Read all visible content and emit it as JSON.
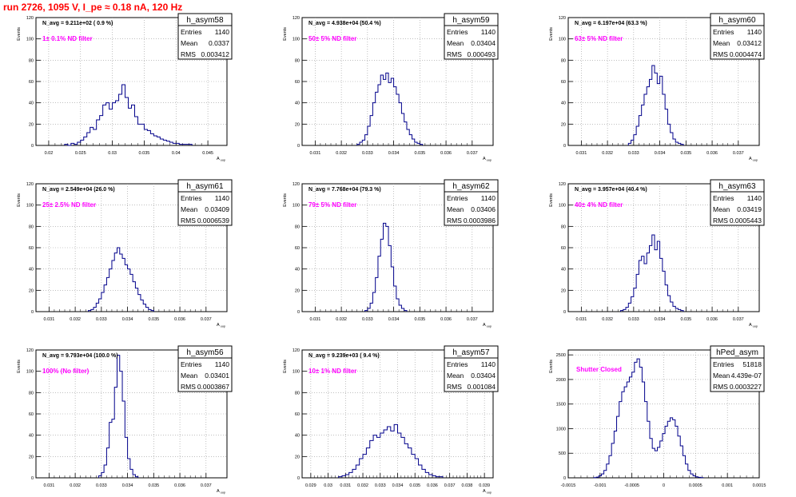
{
  "run_title": "run 2726,  1095 V, I_pe ≈ 0.18 nA, 120 Hz",
  "colors": {
    "histogram": "#00008b",
    "annotation": "#ff00ff",
    "title_red": "#ff0000",
    "grid": "#999999"
  },
  "chart_data": [
    {
      "type": "histogram",
      "name": "h_asym58",
      "ylabel": "Events",
      "xlabel": "A_uup",
      "xlim": [
        0.018,
        0.048
      ],
      "ylim": [
        0,
        120
      ],
      "xticks": [
        0.02,
        0.025,
        0.03,
        0.035,
        0.04,
        0.045
      ],
      "xtick_labels": [
        "0.02",
        "0.025",
        "0.03",
        "0.035",
        "0.04",
        "0.045"
      ],
      "yticks": [
        0,
        20,
        40,
        60,
        80,
        100,
        120
      ],
      "stats": {
        "entries_label": "Entries",
        "entries": "1140",
        "mean_label": "Mean",
        "mean": "0.0337",
        "rms_label": "RMS",
        "rms": "0.003412"
      },
      "navg_text": "N_avg = 9.211e+02 ( 0.9 %)",
      "filter_text": "1± 0.1% ND filter",
      "bins": {
        "x0": 0.0225,
        "width": 0.0005,
        "counts": [
          1,
          0,
          2,
          1,
          3,
          5,
          8,
          12,
          17,
          15,
          24,
          28,
          38,
          40,
          34,
          40,
          42,
          48,
          57,
          45,
          35,
          38,
          27,
          20,
          20,
          15,
          14,
          11,
          9,
          8,
          6,
          5,
          4,
          3,
          2,
          2,
          1,
          1,
          1,
          1
        ]
      }
    },
    {
      "type": "histogram",
      "name": "h_asym59",
      "ylabel": "Events",
      "xlabel": "A_uup",
      "xlim": [
        0.0305,
        0.0378
      ],
      "ylim": [
        0,
        120
      ],
      "xticks": [
        0.031,
        0.032,
        0.033,
        0.034,
        0.035,
        0.036,
        0.037
      ],
      "xtick_labels": [
        "0.031",
        "0.032",
        "0.033",
        "0.034",
        "0.035",
        "0.036",
        "0.037"
      ],
      "yticks": [
        0,
        20,
        40,
        60,
        80,
        100,
        120
      ],
      "stats": {
        "entries_label": "Entries",
        "entries": "1140",
        "mean_label": "Mean",
        "mean": "0.03404",
        "rms_label": "RMS",
        "rms": "0.000493"
      },
      "navg_text": "N_avg = 4.938e+04 (50.4 %)",
      "filter_text": "50± 5% ND filter",
      "bins": {
        "x0": 0.0326,
        "width": 0.0001,
        "counts": [
          1,
          3,
          5,
          10,
          18,
          28,
          40,
          50,
          57,
          66,
          62,
          68,
          59,
          63,
          55,
          48,
          40,
          30,
          22,
          15,
          10,
          6,
          3,
          2,
          1
        ]
      }
    },
    {
      "type": "histogram",
      "name": "h_asym60",
      "ylabel": "Events",
      "xlabel": "A_uup",
      "xlim": [
        0.0305,
        0.0378
      ],
      "ylim": [
        0,
        120
      ],
      "xticks": [
        0.031,
        0.032,
        0.033,
        0.034,
        0.035,
        0.036,
        0.037
      ],
      "xtick_labels": [
        "0.031",
        "0.032",
        "0.033",
        "0.034",
        "0.035",
        "0.036",
        "0.037"
      ],
      "yticks": [
        0,
        20,
        40,
        60,
        80,
        100,
        120
      ],
      "stats": {
        "entries_label": "Entries",
        "entries": "1140",
        "mean_label": "Mean",
        "mean": "0.03412",
        "rms_label": "RMS",
        "rms": "0.0004474"
      },
      "navg_text": "N_avg = 6.197e+04 (63.3 %)",
      "filter_text": "63± 5% ND filter",
      "bins": {
        "x0": 0.0328,
        "width": 0.0001,
        "counts": [
          2,
          5,
          10,
          18,
          28,
          38,
          48,
          55,
          62,
          75,
          68,
          58,
          65,
          48,
          34,
          20,
          12,
          6,
          3,
          2,
          1
        ]
      }
    },
    {
      "type": "histogram",
      "name": "h_asym61",
      "ylabel": "Events",
      "xlabel": "A_uup",
      "xlim": [
        0.0305,
        0.0378
      ],
      "ylim": [
        0,
        120
      ],
      "xticks": [
        0.031,
        0.032,
        0.033,
        0.034,
        0.035,
        0.036,
        0.037
      ],
      "xtick_labels": [
        "0.031",
        "0.032",
        "0.033",
        "0.034",
        "0.035",
        "0.036",
        "0.037"
      ],
      "yticks": [
        0,
        20,
        40,
        60,
        80,
        100,
        120
      ],
      "stats": {
        "entries_label": "Entries",
        "entries": "1140",
        "mean_label": "Mean",
        "mean": "0.03409",
        "rms_label": "RMS",
        "rms": "0.0006539"
      },
      "navg_text": "N_avg = 2.549e+04 (26.0 %)",
      "filter_text": "25± 2.5% ND filter",
      "bins": {
        "x0": 0.0325,
        "width": 0.0001,
        "counts": [
          1,
          2,
          4,
          8,
          12,
          18,
          25,
          32,
          40,
          48,
          55,
          60,
          54,
          50,
          44,
          40,
          35,
          28,
          22,
          16,
          11,
          7,
          4,
          2,
          1
        ]
      }
    },
    {
      "type": "histogram",
      "name": "h_asym62",
      "ylabel": "Events",
      "xlabel": "A_uup",
      "xlim": [
        0.0305,
        0.0378
      ],
      "ylim": [
        0,
        120
      ],
      "xticks": [
        0.031,
        0.032,
        0.033,
        0.034,
        0.035,
        0.036,
        0.037
      ],
      "xtick_labels": [
        "0.031",
        "0.032",
        "0.033",
        "0.034",
        "0.035",
        "0.036",
        "0.037"
      ],
      "yticks": [
        0,
        20,
        40,
        60,
        80,
        100,
        120
      ],
      "stats": {
        "entries_label": "Entries",
        "entries": "1140",
        "mean_label": "Mean",
        "mean": "0.03406",
        "rms_label": "RMS",
        "rms": "0.0003986"
      },
      "navg_text": "N_avg = 7.768e+04 (79.3 %)",
      "filter_text": "79± 5% ND filter",
      "bins": {
        "x0": 0.0329,
        "width": 0.0001,
        "counts": [
          1,
          3,
          8,
          18,
          32,
          52,
          68,
          83,
          80,
          62,
          42,
          24,
          12,
          6,
          3,
          1
        ]
      }
    },
    {
      "type": "histogram",
      "name": "h_asym63",
      "ylabel": "Events",
      "xlabel": "A_uup",
      "xlim": [
        0.0305,
        0.0378
      ],
      "ylim": [
        0,
        120
      ],
      "xticks": [
        0.031,
        0.032,
        0.033,
        0.034,
        0.035,
        0.036,
        0.037
      ],
      "xtick_labels": [
        "0.031",
        "0.032",
        "0.033",
        "0.034",
        "0.035",
        "0.036",
        "0.037"
      ],
      "yticks": [
        0,
        20,
        40,
        60,
        80,
        100,
        120
      ],
      "stats": {
        "entries_label": "Entries",
        "entries": "1140",
        "mean_label": "Mean",
        "mean": "0.03419",
        "rms_label": "RMS",
        "rms": "0.0005443"
      },
      "navg_text": "N_avg = 3.957e+04 (40.4 %)",
      "filter_text": "40± 4% ND filter",
      "bins": {
        "x0": 0.0325,
        "width": 0.0001,
        "counts": [
          1,
          2,
          4,
          8,
          14,
          22,
          35,
          48,
          52,
          45,
          55,
          62,
          72,
          58,
          66,
          50,
          38,
          25,
          15,
          9,
          5,
          3,
          2,
          1
        ]
      }
    },
    {
      "type": "histogram",
      "name": "h_asym56",
      "ylabel": "Events",
      "xlabel": "A_uup",
      "xlim": [
        0.0305,
        0.0378
      ],
      "ylim": [
        0,
        120
      ],
      "xticks": [
        0.031,
        0.032,
        0.033,
        0.034,
        0.035,
        0.036,
        0.037
      ],
      "xtick_labels": [
        "0.031",
        "0.032",
        "0.033",
        "0.034",
        "0.035",
        "0.036",
        "0.037"
      ],
      "yticks": [
        0,
        20,
        40,
        60,
        80,
        100,
        120
      ],
      "stats": {
        "entries_label": "Entries",
        "entries": "1140",
        "mean_label": "Mean",
        "mean": "0.03401",
        "rms_label": "RMS",
        "rms": "0.0003867"
      },
      "navg_text": "N_avg = 9.793e+04 (100.0 %)",
      "filter_text": "100% (No filter)",
      "bins": {
        "x0": 0.0329,
        "width": 0.0001,
        "counts": [
          2,
          5,
          12,
          28,
          52,
          55,
          85,
          115,
          100,
          72,
          38,
          18,
          8,
          3,
          1
        ]
      }
    },
    {
      "type": "histogram",
      "name": "h_asym57",
      "ylabel": "Events",
      "xlabel": "A_uup",
      "xlim": [
        0.0285,
        0.0395
      ],
      "ylim": [
        0,
        120
      ],
      "xticks": [
        0.029,
        0.03,
        0.031,
        0.032,
        0.033,
        0.034,
        0.035,
        0.036,
        0.037,
        0.038,
        0.039
      ],
      "xtick_labels": [
        "0.029",
        "0.03",
        "0.031",
        "0.032",
        "0.033",
        "0.034",
        "0.035",
        "0.036",
        "0.037",
        "0.038",
        "0.039"
      ],
      "yticks": [
        0,
        20,
        40,
        60,
        80,
        100,
        120
      ],
      "stats": {
        "entries_label": "Entries",
        "entries": "1140",
        "mean_label": "Mean",
        "mean": "0.03404",
        "rms_label": "RMS",
        "rms": "0.001084"
      },
      "navg_text": "N_avg = 9.239e+03 ( 9.4 %)",
      "filter_text": "10± 1% ND filter",
      "bins": {
        "x0": 0.0306,
        "width": 0.0002,
        "counts": [
          1,
          2,
          3,
          5,
          8,
          12,
          18,
          22,
          28,
          35,
          40,
          38,
          42,
          45,
          48,
          44,
          50,
          42,
          38,
          32,
          28,
          22,
          18,
          12,
          8,
          5,
          3,
          2,
          1,
          1
        ]
      }
    },
    {
      "type": "histogram",
      "name": "hPed_asym",
      "ylabel": "Events",
      "xlabel": "",
      "xlim": [
        -0.0015,
        0.0015
      ],
      "ylim": [
        0,
        2600
      ],
      "xticks": [
        -0.0015,
        -0.001,
        -0.0005,
        0,
        0.0005,
        0.001,
        0.0015
      ],
      "xtick_labels": [
        "-0.0015",
        "-0.001",
        "-0.0005",
        "0",
        "0.0005",
        "0.001",
        "0.0015"
      ],
      "yticks": [
        0,
        500,
        1000,
        1500,
        2000,
        2500
      ],
      "stats": {
        "entries_label": "Entries",
        "entries": "51818",
        "mean_label": "Mean",
        "mean": "4.439e-07",
        "rms_label": "RMS",
        "rms": "0.0003227"
      },
      "navg_text": "",
      "filter_text": "Shutter Closed",
      "bins": {
        "x0": -0.0011,
        "width": 4e-05,
        "counts": [
          5,
          15,
          40,
          80,
          150,
          280,
          450,
          700,
          950,
          1250,
          1550,
          1750,
          1850,
          1950,
          2050,
          2150,
          2350,
          2420,
          2250,
          1950,
          1550,
          1150,
          800,
          600,
          550,
          620,
          750,
          900,
          1050,
          1150,
          1220,
          1180,
          1050,
          850,
          650,
          450,
          280,
          150,
          80,
          40,
          20,
          10,
          5
        ]
      }
    }
  ]
}
